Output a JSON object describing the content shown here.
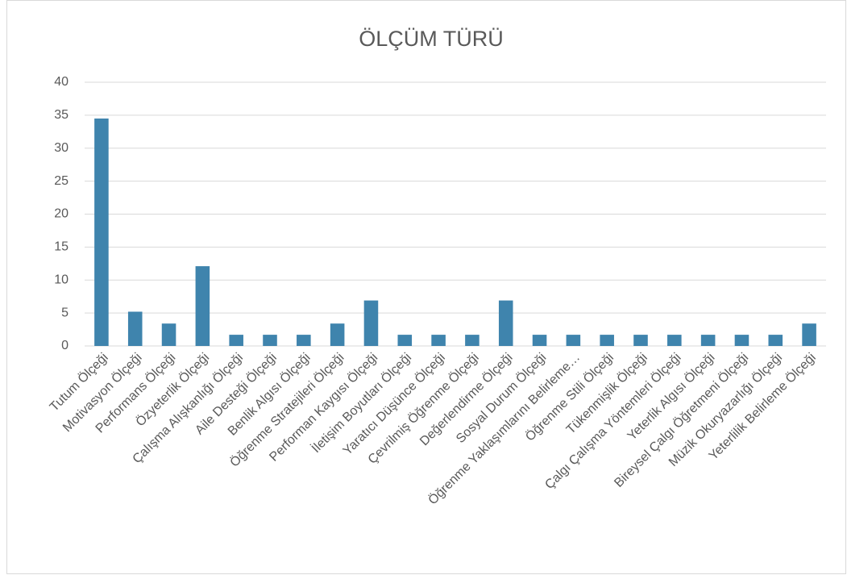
{
  "chart_data": {
    "type": "bar",
    "title": "ÖLÇÜM TÜRÜ",
    "categories": [
      "Tutum Ölçeği",
      "Motivasyon Ölçeği",
      "Performans Ölçeği",
      "Özyeterlik Ölçeği",
      "Çalışma Alışkanlığı Ölçeği",
      "Aile Desteği Ölçeği",
      "Benlik Algısı Ölçeği",
      "Öğrenme Stratejileri Ölçeği",
      "Performan Kaygısı Ölçeği",
      "İletişim Boyutları Ölçeği",
      "Yaratıcı Düşünce Ölçeği",
      "Çevrilmiş Öğrenme Ölçeği",
      "Değerlendirme Ölçeği",
      "Sosyal Durum Ölçeği",
      "Öğrenme Yaklaşımlarını Belirleme…",
      "Öğrenme Stili Ölçeği",
      "Tükenmişlik Ölçeği",
      "Çalgı Çalışma Yöntemleri Ölçeği",
      "Yeterlik Algısı Ölçeği",
      "Bireysel Çalgı Öğretmeni Ölçeği",
      "Müzik Okuryazarlığı Ölçeği",
      "Yeterlilik Belirleme Ölçeği"
    ],
    "values": [
      34.5,
      5.2,
      3.4,
      12.1,
      1.7,
      1.7,
      1.7,
      3.4,
      6.9,
      1.7,
      1.7,
      1.7,
      6.9,
      1.7,
      1.7,
      1.7,
      1.7,
      1.7,
      1.7,
      1.7,
      1.7,
      3.4
    ],
    "color": "#3f84ad",
    "ylim": [
      0,
      40
    ],
    "yticks": [
      0,
      5,
      10,
      15,
      20,
      25,
      30,
      35,
      40
    ],
    "grid": true
  }
}
